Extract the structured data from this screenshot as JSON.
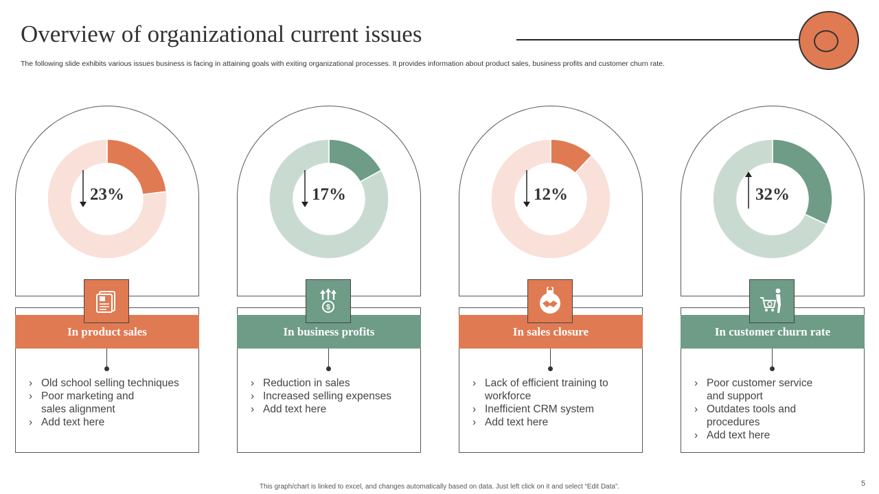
{
  "title": "Overview of organizational current issues",
  "subtitle": "The following slide exhibits various issues business is facing in attaining goals with exiting organizational processes. It provides information about product sales, business profits and customer churn rate.",
  "footer": "This graph/chart is linked to excel,  and changes automatically based on data. Just left click on it and select “Edit Data”.",
  "page_number": "5",
  "colors": {
    "orange": "#E07A52",
    "orange_light": "#F9E0D8",
    "green": "#6E9C86",
    "green_light": "#C9DBD1"
  },
  "chart_data": [
    {
      "type": "pie",
      "title": "In product sales",
      "values": [
        23,
        77
      ],
      "label": "23%",
      "trend": "down",
      "theme": "orange",
      "icon": "document-stack-icon",
      "bullets": [
        "Old school selling techniques",
        "Poor marketing and sales alignment",
        "Add text here"
      ]
    },
    {
      "type": "pie",
      "title": "In business profits",
      "values": [
        17,
        83
      ],
      "label": "17%",
      "trend": "down",
      "theme": "green",
      "icon": "money-growth-icon",
      "bullets": [
        "Reduction in sales",
        "Increased selling expenses",
        "Add text here"
      ]
    },
    {
      "type": "pie",
      "title": "In sales closure",
      "values": [
        12,
        88
      ],
      "label": "12%",
      "trend": "down",
      "theme": "orange",
      "icon": "handshake-lock-icon",
      "bullets": [
        "Lack of efficient training to workforce",
        "Inefficient  CRM system",
        "Add text here"
      ]
    },
    {
      "type": "pie",
      "title": "In customer churn rate",
      "values": [
        32,
        68
      ],
      "label": "32%",
      "trend": "up",
      "theme": "green",
      "icon": "shopping-cart-user-icon",
      "bullets": [
        "Poor customer service and support",
        "Outdates tools and procedures",
        "Add text here"
      ]
    }
  ]
}
